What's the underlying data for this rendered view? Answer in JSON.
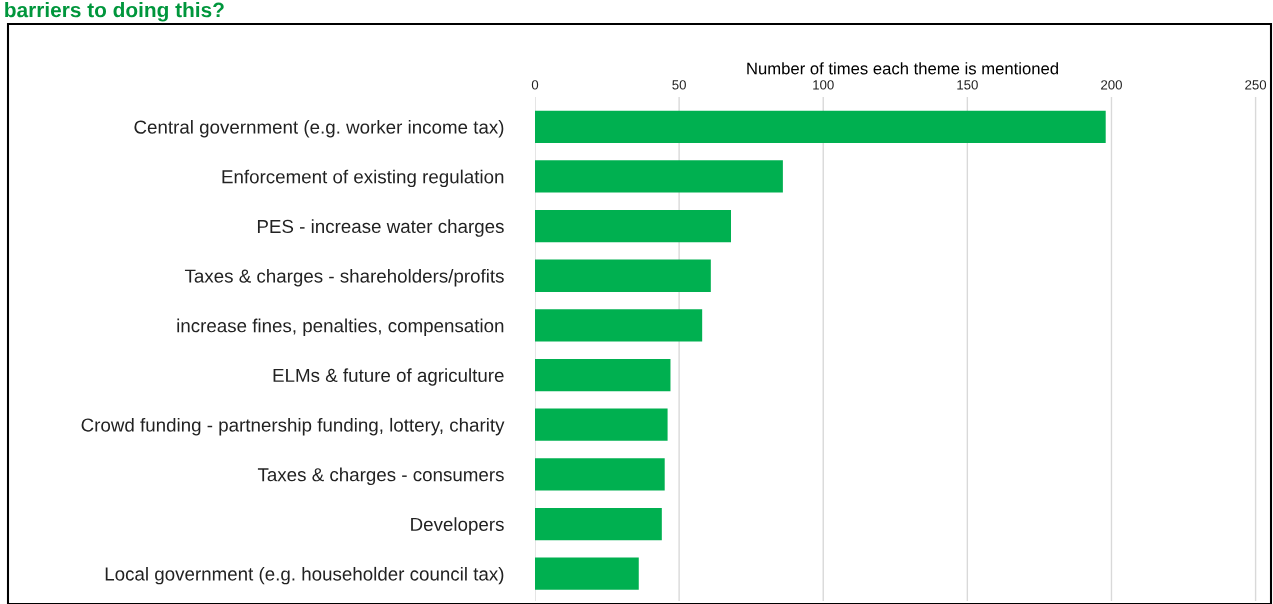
{
  "chart_data": {
    "type": "bar",
    "orientation": "horizontal",
    "title": "barriers to doing this?",
    "xlabel": "Number of times each theme is mentioned",
    "categories": [
      "Central government (e.g. worker income tax)",
      "Enforcement of existing regulation",
      "PES - increase water charges",
      "Taxes & charges - shareholders/profits",
      "increase fines, penalties, compensation",
      "ELMs & future of agriculture",
      "Crowd funding - partnership funding, lottery, charity",
      "Taxes & charges - consumers",
      "Developers",
      "Local government (e.g. householder council tax)"
    ],
    "values": [
      198,
      86,
      68,
      61,
      58,
      47,
      46,
      45,
      44,
      36
    ],
    "color": "#00b050",
    "xlim": [
      0,
      255
    ],
    "xticks": [
      0,
      50,
      100,
      150,
      200,
      250
    ],
    "grid": "x"
  }
}
